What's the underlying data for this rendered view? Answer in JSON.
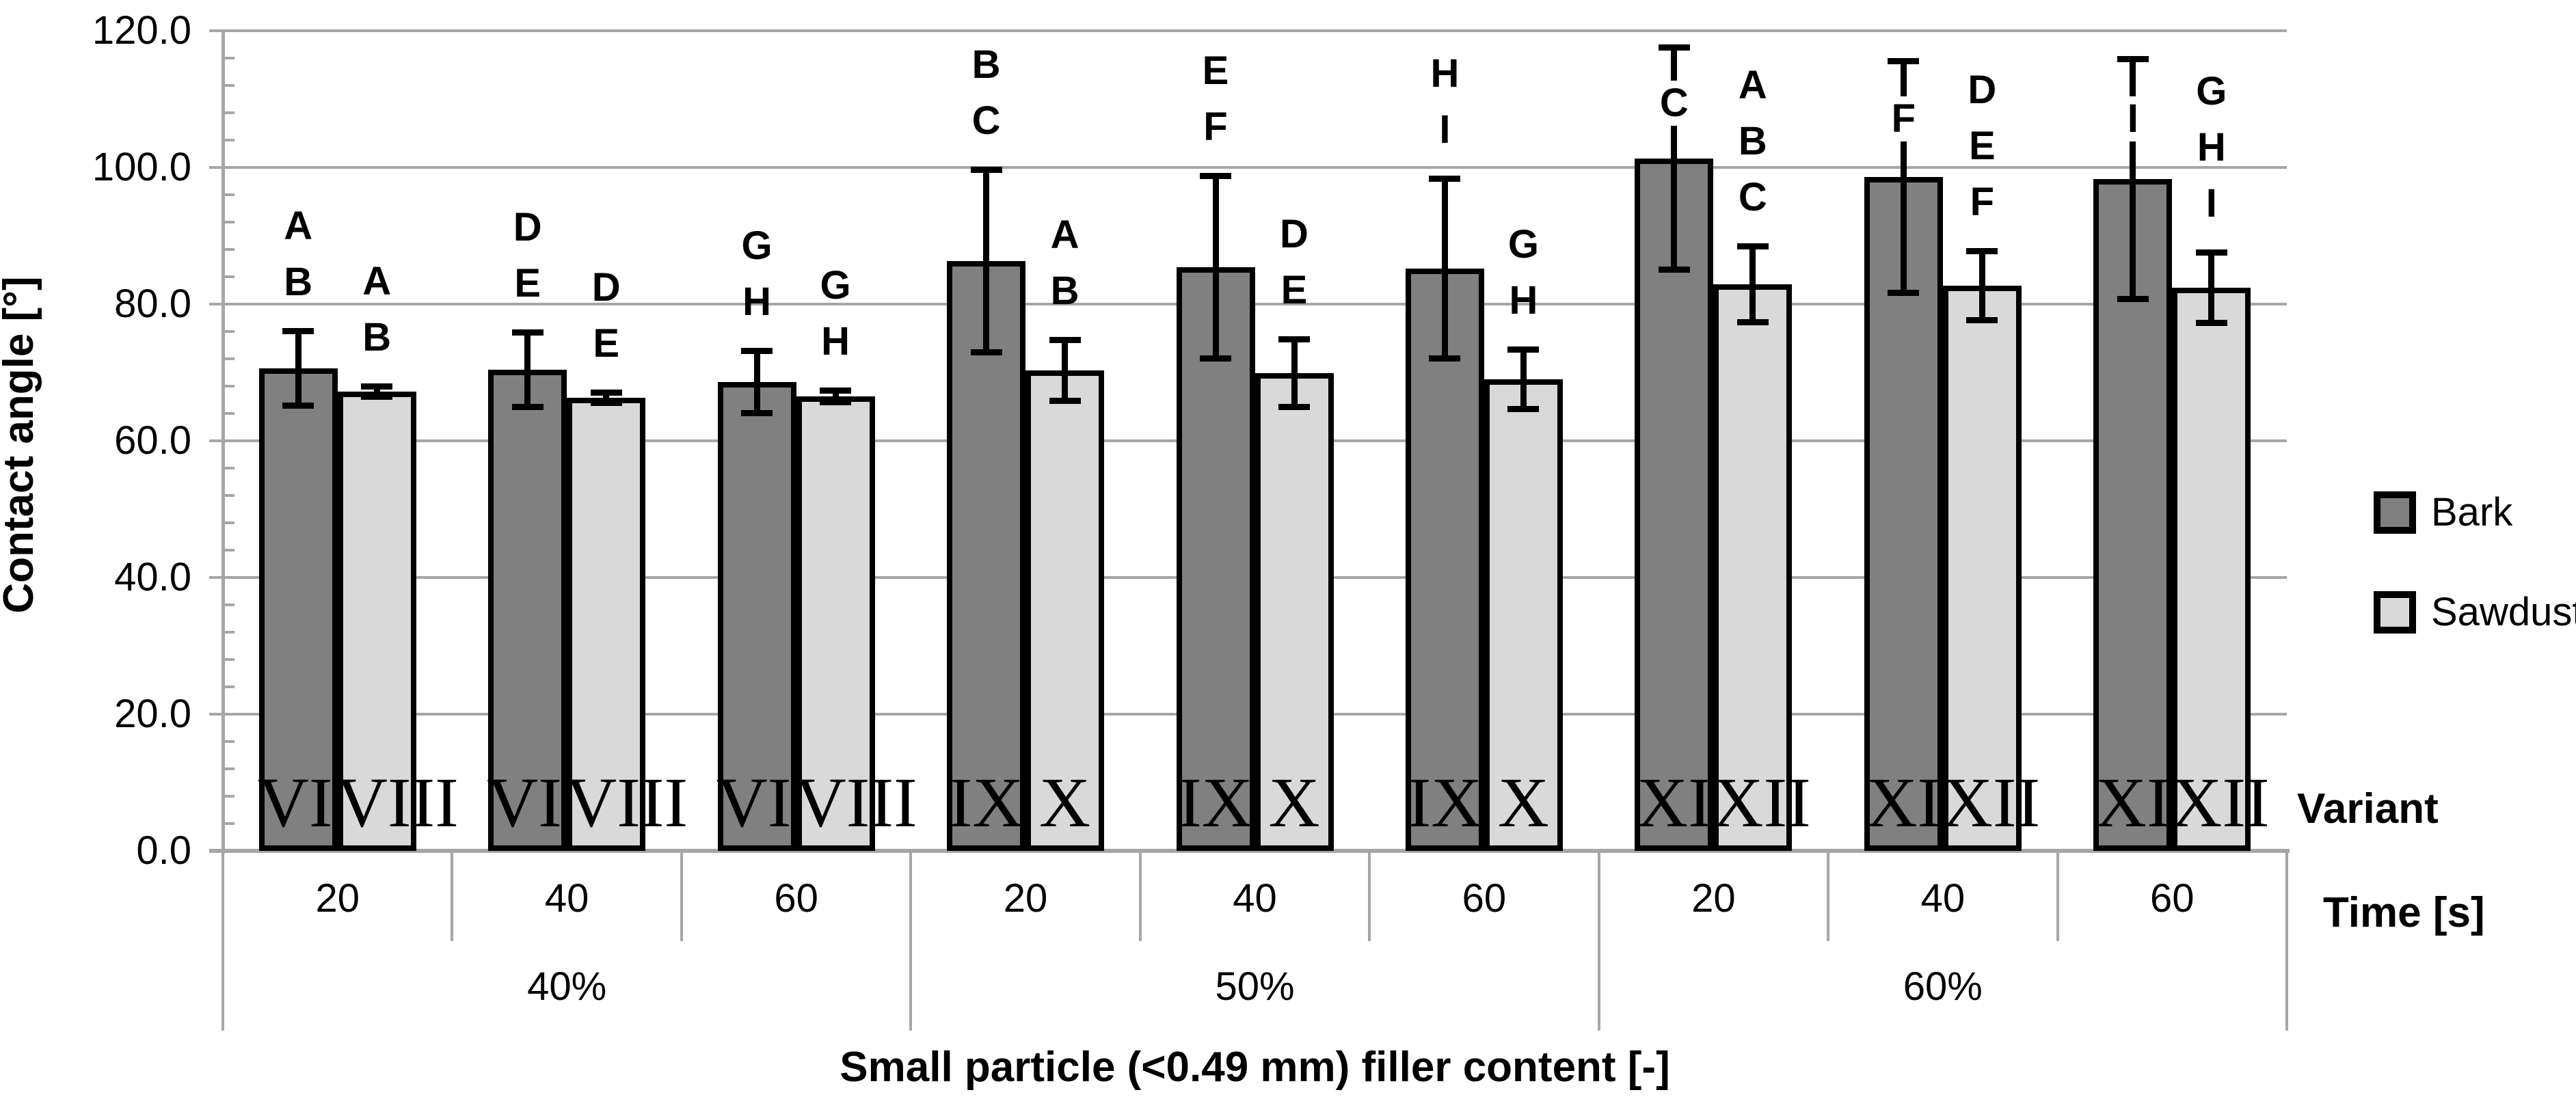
{
  "colors": {
    "bark": "#808080",
    "sawdust": "#d9d9d9",
    "grid": "#a6a6a6",
    "bar_border": "#000000"
  },
  "y_axis": {
    "title": "Contact angle [°]",
    "tick_labels": [
      "120.0",
      "100.0",
      "80.0",
      "60.0",
      "40.0",
      "20.0",
      "0.0"
    ]
  },
  "x_axis": {
    "title": "Small particle (<0.49 mm) filler content [-]",
    "variant_row_label": "Variant",
    "time_row_label": "Time [s]"
  },
  "legend": {
    "items": [
      {
        "label": "Bark",
        "color_key": "bark"
      },
      {
        "label": "Sawdust",
        "color_key": "sawdust"
      }
    ]
  },
  "chart_data": {
    "type": "bar",
    "title": "",
    "xlabel": "Small particle (<0.49 mm) filler content [-]",
    "ylabel": "Contact angle [°]",
    "ylim": [
      0,
      120
    ],
    "ytick_step": 20,
    "yminor_step": 4,
    "grid": true,
    "legend_position": "right",
    "series_names": [
      "Bark",
      "Sawdust"
    ],
    "groups": [
      {
        "filler": "40%",
        "times": [
          {
            "time": "20",
            "bars": [
              {
                "series": "Bark",
                "variant": "VII",
                "value": 70.6,
                "err": 5.5,
                "letters": [
                  "A",
                  "B"
                ],
                "letters_below_cap": false
              },
              {
                "series": "Sawdust",
                "variant": "VIII",
                "value": 67.2,
                "err": 0.8,
                "letters": [
                  "A",
                  "B"
                ],
                "letters_below_cap": false
              }
            ]
          },
          {
            "time": "40",
            "bars": [
              {
                "series": "Bark",
                "variant": "VII",
                "value": 70.4,
                "err": 5.5,
                "letters": [
                  "D",
                  "E"
                ],
                "letters_below_cap": false
              },
              {
                "series": "Sawdust",
                "variant": "VIII",
                "value": 66.3,
                "err": 0.8,
                "letters": [
                  "D",
                  "E"
                ],
                "letters_below_cap": false
              }
            ]
          },
          {
            "time": "60",
            "bars": [
              {
                "series": "Bark",
                "variant": "VII",
                "value": 68.6,
                "err": 4.6,
                "letters": [
                  "G",
                  "H"
                ],
                "letters_below_cap": false
              },
              {
                "series": "Sawdust",
                "variant": "VIII",
                "value": 66.5,
                "err": 0.9,
                "letters": [
                  "G",
                  "H"
                ],
                "letters_below_cap": false
              }
            ]
          }
        ]
      },
      {
        "filler": "50%",
        "times": [
          {
            "time": "20",
            "bars": [
              {
                "series": "Bark",
                "variant": "IX",
                "value": 86.3,
                "err": 13.4,
                "letters": [
                  "B",
                  "C"
                ],
                "letters_below_cap": false
              },
              {
                "series": "Sawdust",
                "variant": "X",
                "value": 70.3,
                "err": 4.5,
                "letters": [
                  "A",
                  "B"
                ],
                "letters_below_cap": false
              }
            ]
          },
          {
            "time": "40",
            "bars": [
              {
                "series": "Bark",
                "variant": "IX",
                "value": 85.4,
                "err": 13.4,
                "letters": [
                  "E",
                  "F"
                ],
                "letters_below_cap": false
              },
              {
                "series": "Sawdust",
                "variant": "X",
                "value": 69.9,
                "err": 5.0,
                "letters": [
                  "D",
                  "E"
                ],
                "letters_below_cap": false
              }
            ]
          },
          {
            "time": "60",
            "bars": [
              {
                "series": "Bark",
                "variant": "IX",
                "value": 85.2,
                "err": 13.2,
                "letters": [
                  "H",
                  "I"
                ],
                "letters_below_cap": false
              },
              {
                "series": "Sawdust",
                "variant": "X",
                "value": 69.0,
                "err": 4.4,
                "letters": [
                  "G",
                  "H"
                ],
                "letters_below_cap": false
              }
            ]
          }
        ]
      },
      {
        "filler": "60%",
        "times": [
          {
            "time": "20",
            "bars": [
              {
                "series": "Bark",
                "variant": "XI",
                "value": 101.3,
                "err": 16.3,
                "letters": [
                  "C"
                ],
                "letters_below_cap": true
              },
              {
                "series": "Sawdust",
                "variant": "XII",
                "value": 82.9,
                "err": 5.6,
                "letters": [
                  "A",
                  "B",
                  "C"
                ],
                "letters_below_cap": false
              }
            ]
          },
          {
            "time": "40",
            "bars": [
              {
                "series": "Bark",
                "variant": "XI",
                "value": 98.6,
                "err": 17.0,
                "letters": [
                  "F"
                ],
                "letters_below_cap": true
              },
              {
                "series": "Sawdust",
                "variant": "XII",
                "value": 82.7,
                "err": 5.1,
                "letters": [
                  "D",
                  "E",
                  "F"
                ],
                "letters_below_cap": false
              }
            ]
          },
          {
            "time": "60",
            "bars": [
              {
                "series": "Bark",
                "variant": "XI",
                "value": 98.3,
                "err": 17.6,
                "letters": [
                  "I"
                ],
                "letters_below_cap": true
              },
              {
                "series": "Sawdust",
                "variant": "XII",
                "value": 82.4,
                "err": 5.2,
                "letters": [
                  "G",
                  "H",
                  "I"
                ],
                "letters_below_cap": false
              }
            ]
          }
        ]
      }
    ]
  }
}
